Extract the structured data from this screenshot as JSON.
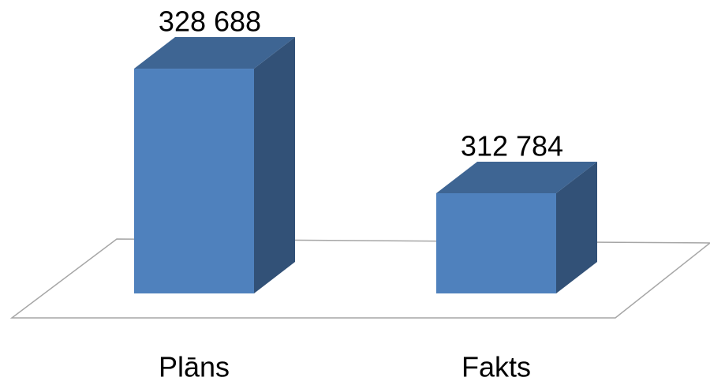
{
  "chart_data": {
    "type": "bar3d",
    "categories": [
      "Plāns",
      "Fakts"
    ],
    "values": [
      328688,
      312784
    ],
    "value_labels": [
      "328 688",
      "312 784"
    ],
    "color": "#4f81bd",
    "ylim": [
      300000,
      330000
    ]
  }
}
